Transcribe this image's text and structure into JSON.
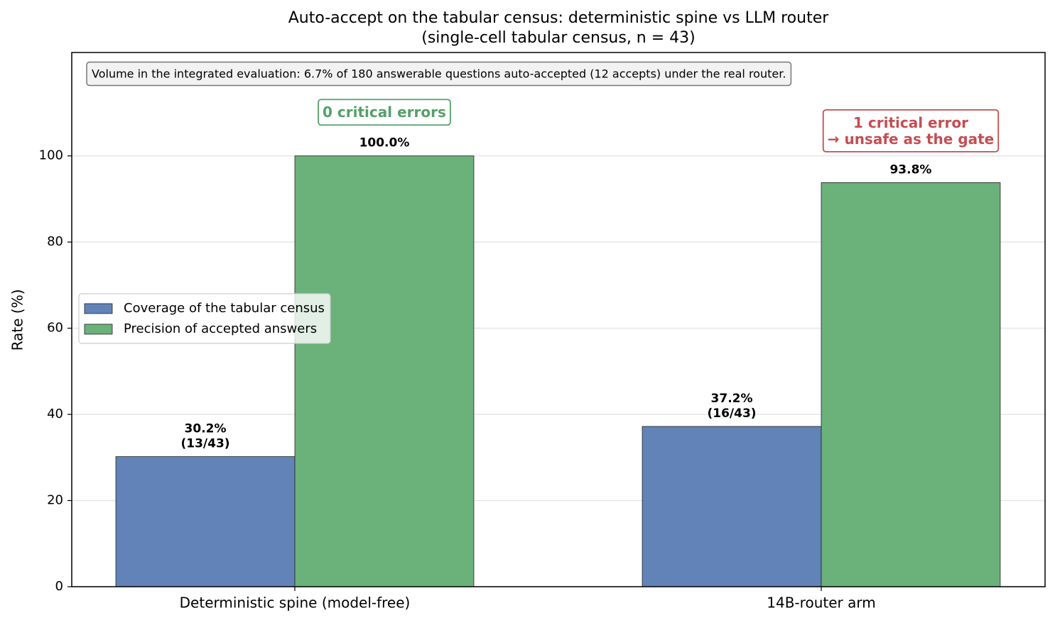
{
  "chart_data": {
    "type": "bar",
    "title": "Auto-accept on the tabular census: deterministic spine vs LLM router",
    "subtitle": "(single-cell tabular census, n = 43)",
    "y_label": "Rate (%)",
    "categories": [
      "Deterministic spine (model-free)",
      "14B-router arm"
    ],
    "series": [
      {
        "name": "Coverage of the tabular census",
        "color": "#6283b7",
        "values": [
          30.2,
          37.2
        ],
        "value_labels": [
          [
            "30.2%",
            "(13/43)"
          ],
          [
            "37.2%",
            "(16/43)"
          ]
        ]
      },
      {
        "name": "Precision of accepted answers",
        "color": "#6ab17a",
        "values": [
          100.0,
          93.8
        ],
        "value_labels": [
          [
            "100.0%"
          ],
          [
            "93.8%"
          ]
        ]
      }
    ],
    "ylim": [
      0,
      124
    ],
    "yticks": [
      0,
      20,
      40,
      60,
      80,
      100
    ],
    "grid": true,
    "legend": "center left",
    "note": "Volume in the integrated evaluation: 6.7% of 180 answerable questions auto-accepted (12 accepts) under the real router.",
    "annotations": [
      {
        "category": 0,
        "lines": [
          "0 critical errors"
        ],
        "color": "#55a06a"
      },
      {
        "category": 1,
        "lines": [
          "1 critical error",
          "→ unsafe as the gate"
        ],
        "color": "#c44e52"
      }
    ]
  }
}
